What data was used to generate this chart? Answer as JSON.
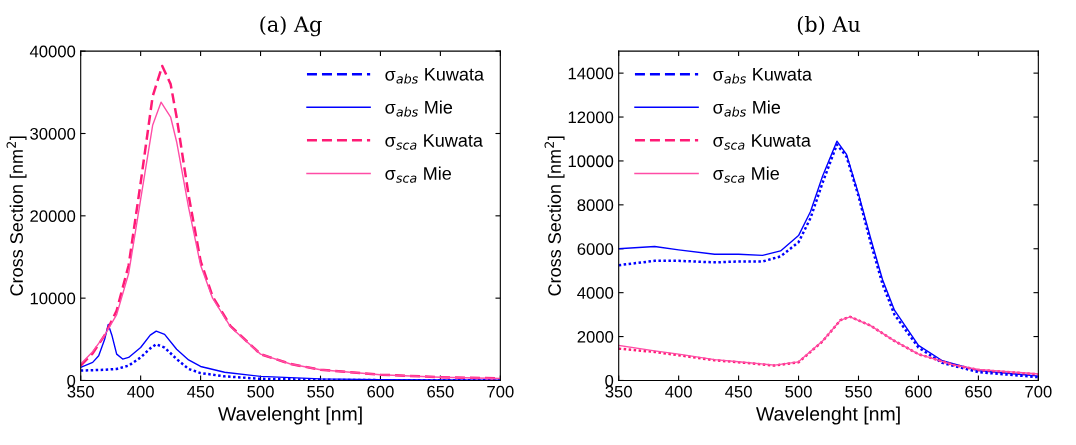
{
  "chart_data": [
    {
      "type": "line",
      "title": "(a) Ag",
      "xlabel": "Wavelenght [nm]",
      "ylabel": "Cross Section [nm$^{2}$]",
      "xlim": [
        350,
        700
      ],
      "xticks": [
        350,
        400,
        450,
        500,
        550,
        600,
        650,
        700
      ],
      "ylim": [
        0,
        40000
      ],
      "yticks": [
        0,
        10000,
        20000,
        30000,
        40000
      ],
      "legend": "top right",
      "grid": false,
      "series": [
        {
          "name": "σ$_{abs}$ Kuwata",
          "color": "#0000ff",
          "line_style": "dotted",
          "x": [
            350,
            370,
            380,
            390,
            400,
            408,
            413,
            420,
            430,
            440,
            450,
            470,
            500,
            550,
            600,
            700
          ],
          "values": [
            1200,
            1300,
            1400,
            1800,
            2800,
            3900,
            4400,
            4000,
            2600,
            1400,
            900,
            500,
            200,
            80,
            40,
            20
          ]
        },
        {
          "name": "σ$_{abs}$ Mie",
          "color": "#0000ff",
          "line_style": "solid",
          "x": [
            350,
            360,
            365,
            370,
            373,
            376,
            380,
            385,
            390,
            400,
            408,
            413,
            420,
            430,
            440,
            450,
            470,
            500,
            550,
            600,
            700
          ],
          "values": [
            1600,
            2200,
            3000,
            5000,
            6800,
            5500,
            3200,
            2600,
            2800,
            4000,
            5500,
            6000,
            5600,
            3800,
            2500,
            1700,
            1000,
            500,
            200,
            100,
            40
          ]
        },
        {
          "name": "σ$_{sca}$ Kuwata",
          "color": "#ff1a75",
          "line_style": "dashed",
          "x": [
            350,
            360,
            370,
            380,
            390,
            400,
            410,
            418,
            425,
            430,
            440,
            450,
            460,
            475,
            500,
            525,
            550,
            600,
            650,
            700
          ],
          "values": [
            1800,
            3300,
            5500,
            8500,
            14000,
            24000,
            34500,
            38200,
            36000,
            32000,
            22500,
            14500,
            10200,
            6600,
            3200,
            2000,
            1300,
            700,
            400,
            250
          ]
        },
        {
          "name": "σ$_{sca}$ Mie",
          "color": "#ff4da6",
          "line_style": "solid",
          "x": [
            350,
            360,
            370,
            380,
            390,
            400,
            410,
            417,
            425,
            430,
            440,
            450,
            460,
            475,
            500,
            525,
            550,
            600,
            650,
            700
          ],
          "values": [
            2000,
            3500,
            5500,
            8000,
            13000,
            22000,
            31000,
            33800,
            32000,
            29000,
            21000,
            14000,
            10000,
            6500,
            3200,
            2000,
            1300,
            700,
            400,
            250
          ]
        }
      ]
    },
    {
      "type": "line",
      "title": "(b) Au",
      "xlabel": "Wavelenght [nm]",
      "ylabel": "Cross Section [nm$^{2}$]",
      "xlim": [
        350,
        700
      ],
      "xticks": [
        350,
        400,
        450,
        500,
        550,
        600,
        650,
        700
      ],
      "ylim": [
        0,
        15000
      ],
      "yticks": [
        0,
        2000,
        4000,
        6000,
        8000,
        10000,
        12000,
        14000
      ],
      "legend": "top left",
      "grid": false,
      "series": [
        {
          "name": "σ$_{abs}$ Kuwata",
          "color": "#0000ff",
          "line_style": "dotted",
          "x": [
            350,
            380,
            400,
            430,
            450,
            470,
            485,
            500,
            510,
            520,
            532,
            540,
            550,
            560,
            570,
            580,
            600,
            620,
            650,
            700
          ],
          "values": [
            5250,
            5450,
            5450,
            5380,
            5420,
            5420,
            5650,
            6300,
            7400,
            9000,
            10750,
            10200,
            8400,
            6300,
            4400,
            3000,
            1500,
            800,
            380,
            150
          ]
        },
        {
          "name": "σ$_{abs}$ Mie",
          "color": "#0000ff",
          "line_style": "solid",
          "x": [
            350,
            380,
            400,
            430,
            450,
            470,
            485,
            500,
            510,
            520,
            532,
            540,
            550,
            560,
            570,
            580,
            600,
            620,
            650,
            700
          ],
          "values": [
            6000,
            6100,
            5950,
            5750,
            5750,
            5700,
            5900,
            6600,
            7700,
            9300,
            10900,
            10300,
            8500,
            6500,
            4600,
            3200,
            1600,
            900,
            450,
            200
          ]
        },
        {
          "name": "σ$_{sca}$ Kuwata",
          "color": "#ff1a75",
          "line_style": "dotted",
          "x": [
            350,
            380,
            400,
            430,
            450,
            480,
            500,
            520,
            535,
            543,
            560,
            580,
            600,
            630,
            650,
            700
          ],
          "values": [
            1450,
            1300,
            1150,
            920,
            830,
            680,
            830,
            1780,
            2750,
            2900,
            2500,
            1800,
            1200,
            700,
            480,
            280
          ]
        },
        {
          "name": "σ$_{sca}$ Mie",
          "color": "#ff4da6",
          "line_style": "solid",
          "x": [
            350,
            380,
            400,
            430,
            450,
            480,
            500,
            520,
            535,
            543,
            560,
            580,
            600,
            630,
            650,
            700
          ],
          "values": [
            1600,
            1350,
            1200,
            950,
            850,
            700,
            850,
            1800,
            2750,
            2900,
            2500,
            1800,
            1200,
            700,
            500,
            300
          ]
        }
      ]
    }
  ]
}
